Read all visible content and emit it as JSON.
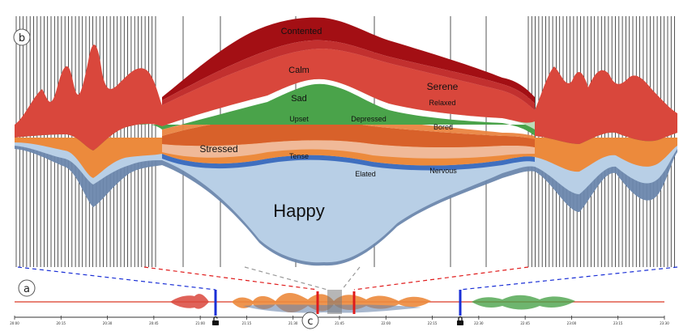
{
  "panel_labels": {
    "b": "b",
    "a": "a",
    "c": "c"
  },
  "emotions": {
    "contented": "Contented",
    "calm": "Calm",
    "serene": "Serene",
    "relaxed": "Relaxed",
    "sad": "Sad",
    "depressed": "Depressed",
    "bored": "Bored",
    "upset": "Upset",
    "stressed": "Stressed",
    "tense": "Tense",
    "nervous": "Nervous",
    "elated": "Elated",
    "happy": "Happy"
  },
  "timeline_ticks": [
    "20:00",
    "20:15",
    "20:30",
    "20:45",
    "21:00",
    "21:15",
    "21:30",
    "21:45",
    "22:00",
    "22:15",
    "22:30",
    "22:45",
    "23:00",
    "23:15",
    "23:30"
  ],
  "colors": {
    "red_dark": "#a30f14",
    "red": "#d9473c",
    "pink": "#e3a09c",
    "green": "#4aa34a",
    "orange": "#ec8a3c",
    "peach": "#f0b998",
    "blue": "#3f6fbf",
    "happy_blue": "#b8cfe6",
    "slate": "#6c87ad",
    "lens_blue": "#1a2fd6",
    "lens_red": "#e01b1b"
  },
  "icons": {
    "left_lock": "unlock-icon",
    "right_lock": "lock-icon"
  }
}
